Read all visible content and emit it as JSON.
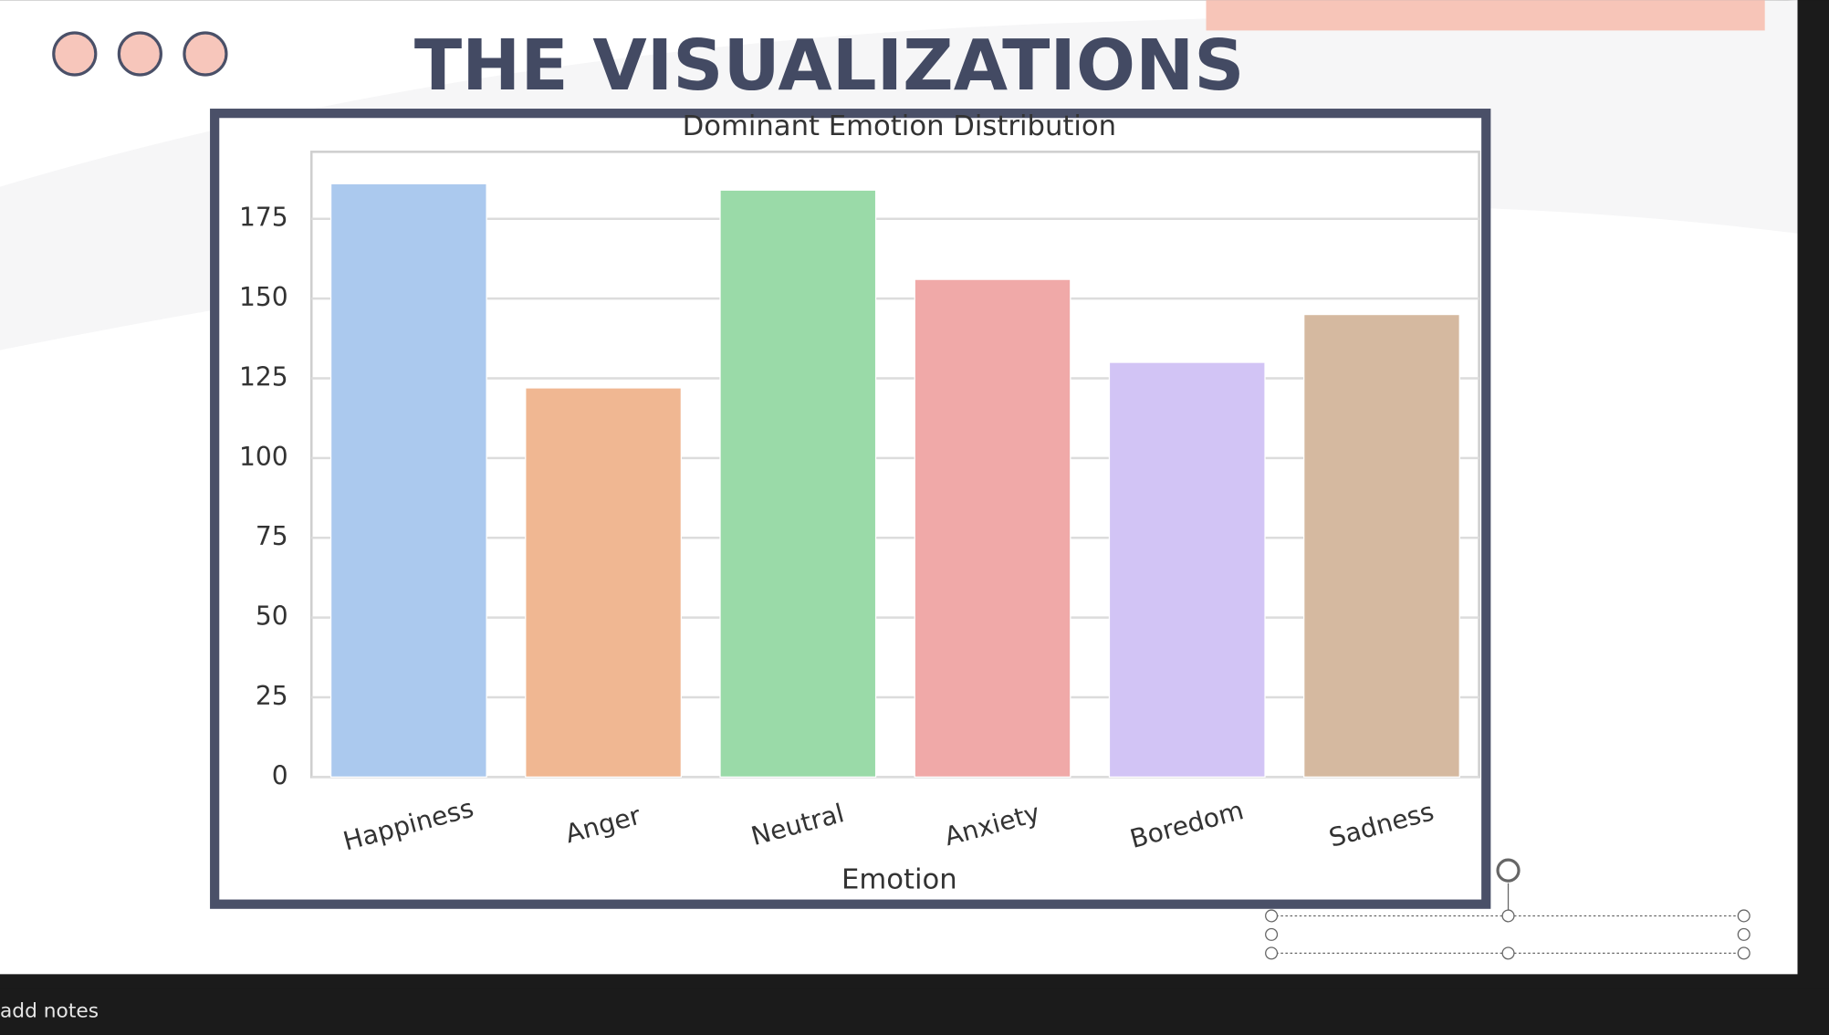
{
  "slide": {
    "title": "THE VISUALIZATIONS",
    "notes_placeholder": "add notes"
  },
  "chart_data": {
    "type": "bar",
    "title": "Dominant Emotion Distribution",
    "x_label": "Emotion",
    "categories": [
      "Happiness",
      "Anger",
      "Neutral",
      "Anxiety",
      "Boredom",
      "Sadness"
    ],
    "values": [
      186,
      122,
      184,
      156,
      130,
      145
    ],
    "colors": [
      "#abc9ee",
      "#f0b792",
      "#9adaa8",
      "#f0a9a8",
      "#d2c4f5",
      "#d5b9a0"
    ],
    "ylim": [
      0,
      196
    ],
    "yticks": [
      0,
      25,
      50,
      75,
      100,
      125,
      150,
      175
    ],
    "grid": true
  }
}
